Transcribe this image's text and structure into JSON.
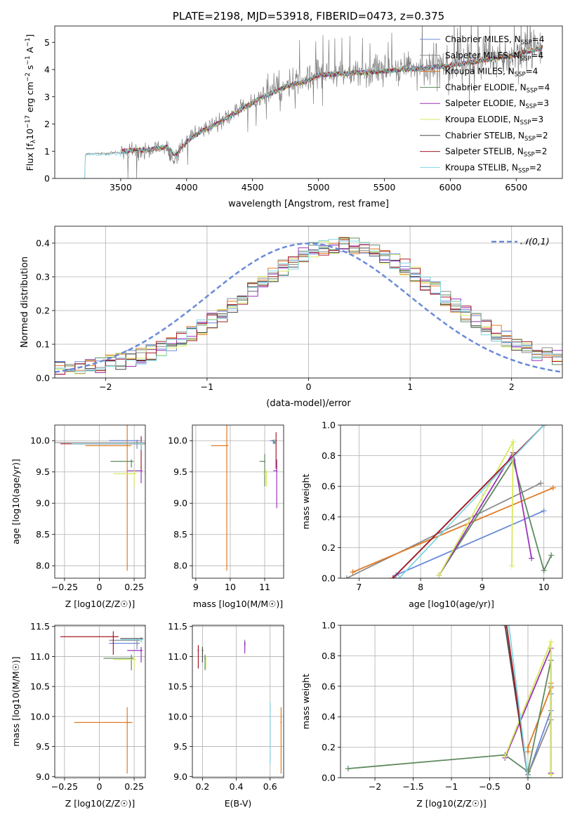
{
  "colors": {
    "grid": "#b0b0b0"
  },
  "chart_data": [
    {
      "id": "spectrum",
      "type": "line",
      "title": "PLATE=2198, MJD=53918, FIBERID=0473, z=0.375",
      "xlabel": "wavelength [Angstrom, rest frame]",
      "ylabel": "Flux [f_λ 10^-17 erg cm^-2 s^-1 A^-1]",
      "xlim": [
        3000,
        6850
      ],
      "ylim": [
        0,
        5.6
      ],
      "xticks": [
        3500,
        4000,
        4500,
        5000,
        5500,
        6000,
        6500
      ],
      "yticks": [
        0,
        1,
        2,
        3,
        4,
        5
      ],
      "grid": false,
      "legend_position": "top-right",
      "observed": {
        "color": "#7f7f7f",
        "x": [
          3200,
          3230,
          3260,
          3500,
          3700,
          3850,
          3900,
          3950,
          4000,
          4100,
          4250,
          4400,
          4600,
          4800,
          4900,
          5000,
          5200,
          5500,
          5800,
          6000,
          6200,
          6500,
          6700
        ],
        "y": [
          0,
          0.85,
          0.9,
          0.95,
          1.0,
          1.2,
          0.6,
          1.1,
          1.4,
          1.75,
          2.1,
          2.55,
          3.1,
          3.5,
          3.6,
          3.85,
          3.85,
          4.0,
          4.1,
          4.2,
          4.3,
          4.6,
          4.9
        ]
      },
      "series": [
        {
          "name": "Chabrier MILES",
          "nssp": 4,
          "color": "#6a8ad8"
        },
        {
          "name": "Salpeter MILES",
          "nssp": 4,
          "color": "#8c8c8c"
        },
        {
          "name": "Kroupa MILES",
          "nssp": 4,
          "color": "#e07b24"
        },
        {
          "name": "Chabrier ELODIE",
          "nssp": 4,
          "color": "#5f8a5f"
        },
        {
          "name": "Salpeter ELODIE",
          "nssp": 3,
          "color": "#9a34b8"
        },
        {
          "name": "Kroupa ELODIE",
          "nssp": 3,
          "color": "#d8e860"
        },
        {
          "name": "Chabrier STELIB",
          "nssp": 2,
          "color": "#4a4a4a"
        },
        {
          "name": "Salpeter STELIB",
          "nssp": 2,
          "color": "#a61b29"
        },
        {
          "name": "Kroupa STELIB",
          "nssp": 2,
          "color": "#7fd6e2"
        }
      ],
      "model": {
        "x": [
          3500,
          3700,
          3850,
          3920,
          4000,
          4100,
          4250,
          4400,
          4600,
          4800,
          4900,
          5000,
          5200,
          5500,
          5800,
          6000,
          6200,
          6500,
          6700
        ],
        "y": [
          1.0,
          1.05,
          1.15,
          0.85,
          1.35,
          1.7,
          2.05,
          2.5,
          3.05,
          3.45,
          3.55,
          3.8,
          3.85,
          3.95,
          4.05,
          4.15,
          4.3,
          4.55,
          4.8
        ]
      }
    },
    {
      "id": "residuals",
      "type": "histogram",
      "xlabel": "(data-model)/error",
      "ylabel": "Normed distribution",
      "xlim": [
        -2.5,
        2.5
      ],
      "ylim": [
        0,
        0.45
      ],
      "xticks": [
        -2,
        -1,
        0,
        1,
        2
      ],
      "yticks": [
        0.0,
        0.1,
        0.2,
        0.3,
        0.4
      ],
      "grid": true,
      "legend_position": "top-right",
      "normal_curve": {
        "label": "𝒩(0,1)",
        "color": "#6a8ad8"
      }
    },
    {
      "id": "age-vs-Z",
      "type": "scatter",
      "xlabel": "Z [log10(Z/Z☉)]",
      "ylabel": "age [log10(age/yr)]",
      "xlim": [
        -0.32,
        0.33
      ],
      "ylim": [
        7.8,
        10.25
      ],
      "xticks": [
        -0.25,
        0.0,
        0.25
      ],
      "yticks": [
        8.0,
        8.5,
        9.0,
        9.5,
        10.0
      ],
      "grid": true,
      "points": [
        {
          "series": 0,
          "x": 0.27,
          "y": 10.0,
          "xerr": 0.2,
          "yerr": 0.04
        },
        {
          "series": 1,
          "x": 0.27,
          "y": 9.97,
          "xerr": 0.59,
          "yerr": 0.1
        },
        {
          "series": 2,
          "x": 0.2,
          "y": 9.92,
          "xerr": 0.3,
          "yerr": 2.0
        },
        {
          "series": 3,
          "x": 0.23,
          "y": 9.67,
          "xerr": 0.15,
          "yerr": 0.1
        },
        {
          "series": 4,
          "x": 0.3,
          "y": 9.52,
          "xerr": 0.1,
          "yerr": 0.2
        },
        {
          "series": 5,
          "x": 0.25,
          "y": 9.47,
          "xerr": 0.15,
          "yerr": 0.2
        },
        {
          "series": 6,
          "x": 0.3,
          "y": 9.95,
          "xerr": 0.5,
          "yerr": 0.1
        },
        {
          "series": 7,
          "x": 0.3,
          "y": 9.95,
          "xerr": 0.58,
          "yerr": 0.4
        },
        {
          "series": 8,
          "x": 0.3,
          "y": 9.95,
          "xerr": 0.5,
          "yerr": 0.1
        }
      ]
    },
    {
      "id": "age-vs-mass",
      "type": "scatter",
      "xlabel": "mass [log10(M/M☉)]",
      "ylabel": "",
      "xlim": [
        8.9,
        11.55
      ],
      "ylim": [
        7.8,
        10.25
      ],
      "xticks": [
        9,
        10,
        11
      ],
      "yticks": [
        8.0,
        8.5,
        9.0,
        9.5,
        10.0
      ],
      "grid": true,
      "points": [
        {
          "series": 0,
          "x": 11.25,
          "y": 10.0,
          "xerr": 0.1,
          "yerr": 0.05
        },
        {
          "series": 1,
          "x": 11.3,
          "y": 10.0,
          "xerr": 0.1,
          "yerr": 0.05
        },
        {
          "series": 2,
          "x": 9.9,
          "y": 9.92,
          "xerr": 0.45,
          "yerr": 2.0
        },
        {
          "series": 3,
          "x": 11.0,
          "y": 9.67,
          "xerr": 0.15,
          "yerr": 0.4
        },
        {
          "series": 4,
          "x": 11.35,
          "y": 9.52,
          "xerr": 0.1,
          "yerr": 0.6
        },
        {
          "series": 5,
          "x": 11.05,
          "y": 9.47,
          "xerr": 0.1,
          "yerr": 0.2
        },
        {
          "series": 6,
          "x": 11.28,
          "y": 10.0,
          "xerr": 0.05,
          "yerr": 0.05
        },
        {
          "series": 7,
          "x": 11.33,
          "y": 10.0,
          "xerr": 0.05,
          "yerr": 0.45
        },
        {
          "series": 8,
          "x": 11.3,
          "y": 10.0,
          "xerr": 0.05,
          "yerr": 0.05
        }
      ]
    },
    {
      "id": "mass-weight-vs-age",
      "type": "line",
      "xlabel": "age [log10(age/yr)]",
      "ylabel": "mass weight",
      "xlim": [
        6.7,
        10.3
      ],
      "ylim": [
        0,
        1.0
      ],
      "xticks": [
        7,
        8,
        9,
        10
      ],
      "yticks": [
        0.0,
        0.2,
        0.4,
        0.6,
        0.8,
        1.0
      ],
      "grid": true,
      "series_lines": [
        {
          "series": 0,
          "x": [
            7.6,
            10.0
          ],
          "y": [
            0.02,
            0.44
          ]
        },
        {
          "series": 1,
          "x": [
            6.8,
            9.95
          ],
          "y": [
            0.0,
            0.62
          ]
        },
        {
          "series": 2,
          "x": [
            6.9,
            10.15
          ],
          "y": [
            0.04,
            0.59
          ]
        },
        {
          "series": 3,
          "x": [
            8.3,
            9.5,
            10.0,
            10.12
          ],
          "y": [
            0.02,
            0.77,
            0.05,
            0.15
          ]
        },
        {
          "series": 4,
          "x": [
            8.3,
            9.5,
            9.8
          ],
          "y": [
            0.02,
            0.82,
            0.13
          ]
        },
        {
          "series": 5,
          "x": [
            8.3,
            9.5,
            9.48
          ],
          "y": [
            0.02,
            0.89,
            0.08
          ]
        },
        {
          "series": 6,
          "x": [
            7.55,
            10.0
          ],
          "y": [
            0.0,
            1.0
          ]
        },
        {
          "series": 7,
          "x": [
            7.55,
            10.0
          ],
          "y": [
            0.0,
            1.0
          ]
        },
        {
          "series": 8,
          "x": [
            7.65,
            10.0
          ],
          "y": [
            0.0,
            1.0
          ]
        }
      ]
    },
    {
      "id": "mass-vs-Z",
      "type": "scatter",
      "xlabel": "Z [log10(Z/Z☉)]",
      "ylabel": "mass [log10(M/M☉)]",
      "xlim": [
        -0.32,
        0.33
      ],
      "ylim": [
        8.98,
        11.52
      ],
      "xticks": [
        -0.25,
        0.0,
        0.25
      ],
      "yticks": [
        9.0,
        9.5,
        10.0,
        10.5,
        11.0,
        11.5
      ],
      "grid": true,
      "points": [
        {
          "series": 0,
          "x": 0.27,
          "y": 11.22,
          "xerr": 0.2,
          "yerr": 0.1
        },
        {
          "series": 1,
          "x": 0.27,
          "y": 11.27,
          "xerr": 0.2,
          "yerr": 0.1
        },
        {
          "series": 2,
          "x": 0.2,
          "y": 9.9,
          "xerr": 0.38,
          "yerr": 0.85
        },
        {
          "series": 3,
          "x": 0.23,
          "y": 10.97,
          "xerr": 0.2,
          "yerr": 0.2
        },
        {
          "series": 4,
          "x": 0.3,
          "y": 11.1,
          "xerr": 0.1,
          "yerr": 0.2
        },
        {
          "series": 5,
          "x": 0.25,
          "y": 10.95,
          "xerr": 0.15,
          "yerr": 0.15
        },
        {
          "series": 6,
          "x": 0.3,
          "y": 11.3,
          "xerr": 0.15,
          "yerr": 0.05
        },
        {
          "series": 7,
          "x": 0.1,
          "y": 11.33,
          "xerr": 0.38,
          "yerr": 0.3
        },
        {
          "series": 8,
          "x": 0.3,
          "y": 11.28,
          "xerr": 0.15,
          "yerr": 0.05
        }
      ]
    },
    {
      "id": "mass-vs-EBV",
      "type": "scatter",
      "xlabel": "E(B-V)",
      "ylabel": "",
      "xlim": [
        0.14,
        0.68
      ],
      "ylim": [
        8.98,
        11.52
      ],
      "xticks": [
        0.2,
        0.4,
        0.6
      ],
      "yticks": [
        9.0,
        9.5,
        10.0,
        10.5,
        11.0,
        11.5
      ],
      "grid": true,
      "points": [
        {
          "series": 0,
          "x": 0.45,
          "y": 11.22,
          "xerr": 0,
          "yerr": 0.1
        },
        {
          "series": 1,
          "x": 0.45,
          "y": 11.25,
          "xerr": 0,
          "yerr": 0.1
        },
        {
          "series": 2,
          "x": 0.665,
          "y": 9.9,
          "xerr": 0,
          "yerr": 0.85
        },
        {
          "series": 3,
          "x": 0.215,
          "y": 10.97,
          "xerr": 0,
          "yerr": 0.2
        },
        {
          "series": 4,
          "x": 0.45,
          "y": 11.2,
          "xerr": 0,
          "yerr": 0.15
        },
        {
          "series": 5,
          "x": 0.22,
          "y": 10.95,
          "xerr": 0,
          "yerr": 0.15
        },
        {
          "series": 6,
          "x": 0.2,
          "y": 11.1,
          "xerr": 0,
          "yerr": 0.2
        },
        {
          "series": 7,
          "x": 0.175,
          "y": 11.1,
          "xerr": 0,
          "yerr": 0.3
        },
        {
          "series": 8,
          "x": 0.6,
          "y": 10.0,
          "xerr": 0,
          "yerr": 0.8
        }
      ]
    },
    {
      "id": "mass-weight-vs-Z",
      "type": "line",
      "xlabel": "Z [log10(Z/Z☉)]",
      "ylabel": "mass weight",
      "xlim": [
        -2.45,
        0.45
      ],
      "ylim": [
        0,
        1.0
      ],
      "xticks": [
        -2.0,
        -1.5,
        -1.0,
        -0.5,
        0.0
      ],
      "yticks": [
        0.0,
        0.2,
        0.4,
        0.6,
        0.8,
        1.0
      ],
      "grid": true,
      "series_lines": [
        {
          "series": 0,
          "x": [
            0.0,
            0.3,
            0.3
          ],
          "y": [
            0.02,
            0.44,
            0.55
          ]
        },
        {
          "series": 1,
          "x": [
            0.0,
            0.3,
            0.3
          ],
          "y": [
            0.02,
            0.38,
            0.6
          ]
        },
        {
          "series": 2,
          "x": [
            0.0,
            0.0,
            0.3,
            0.3
          ],
          "y": [
            0.17,
            0.2,
            0.59,
            0.62
          ]
        },
        {
          "series": 3,
          "x": [
            -2.35,
            -0.3,
            0.0,
            0.3,
            0.3
          ],
          "y": [
            0.06,
            0.15,
            0.04,
            0.77,
            0.03
          ]
        },
        {
          "series": 4,
          "x": [
            -0.3,
            0.3,
            0.3
          ],
          "y": [
            0.13,
            0.85,
            0.03
          ]
        },
        {
          "series": 5,
          "x": [
            -0.3,
            0.3,
            0.3
          ],
          "y": [
            0.14,
            0.89,
            0.02
          ]
        },
        {
          "series": 6,
          "x": [
            -0.3,
            0.0
          ],
          "y": [
            1.0,
            0.0
          ]
        },
        {
          "series": 7,
          "x": [
            -0.28,
            0.0
          ],
          "y": [
            1.0,
            0.0
          ]
        },
        {
          "series": 8,
          "x": [
            -0.25,
            0.0
          ],
          "y": [
            1.0,
            0.0
          ]
        }
      ]
    }
  ]
}
